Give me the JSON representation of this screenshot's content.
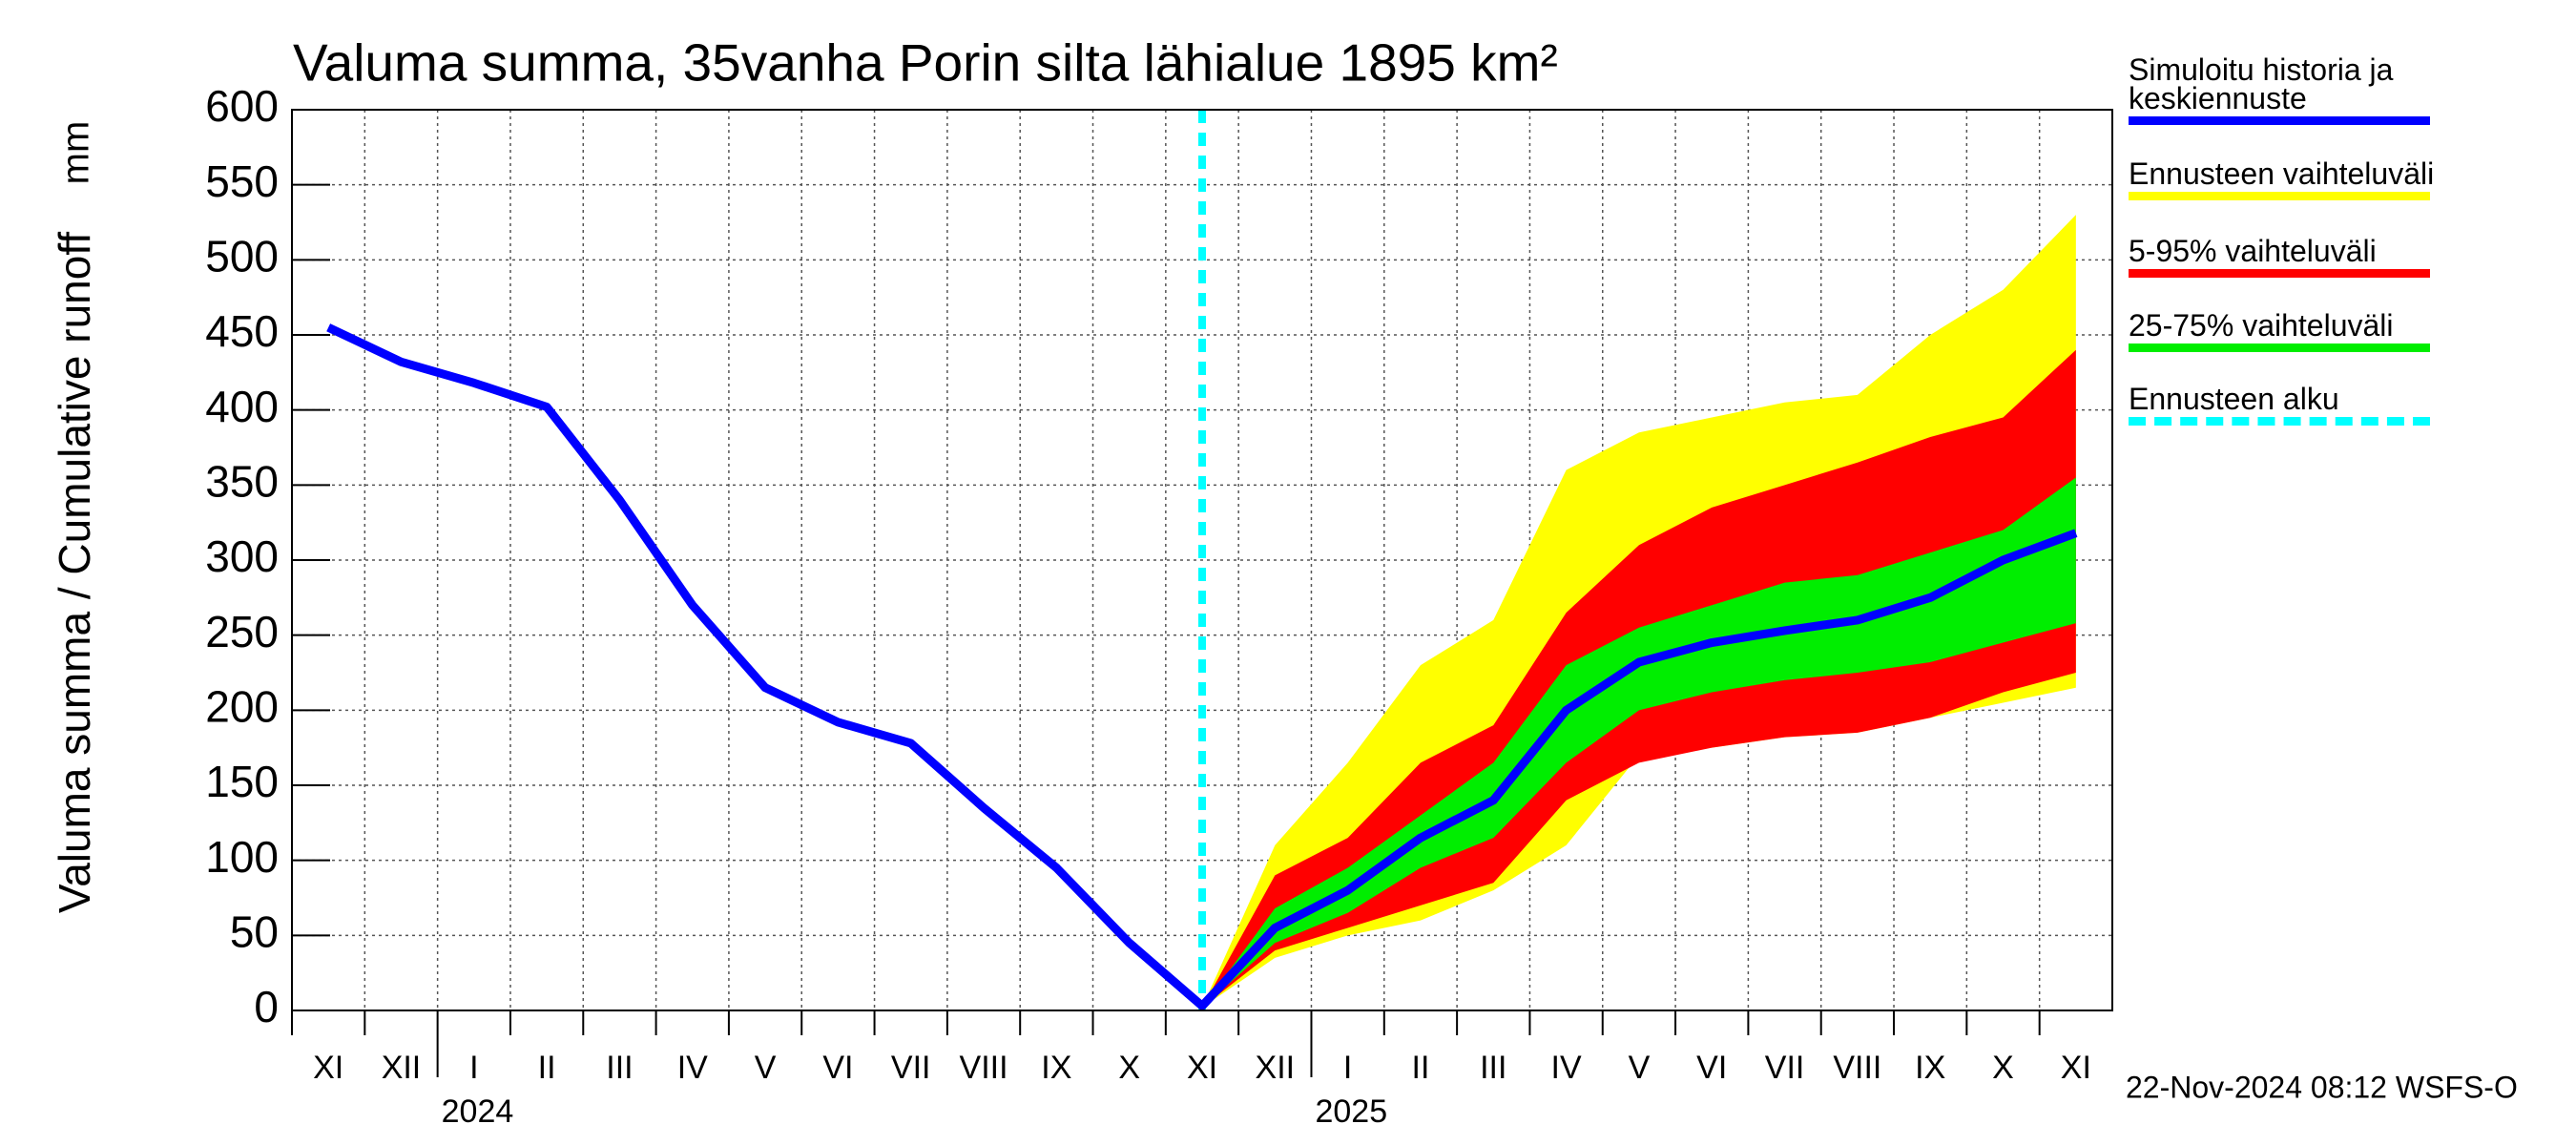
{
  "chart_data": {
    "type": "line",
    "title": "Valuma summa, 35vanha Porin silta lähialue 1895 km²",
    "ylabel": "Valuma summa / Cumulative runoff",
    "yunit": "mm",
    "footer": "22-Nov-2024 08:12 WSFS-O",
    "categories": [
      "XI",
      "XII",
      "I",
      "II",
      "III",
      "IV",
      "V",
      "VI",
      "VII",
      "VIII",
      "IX",
      "X",
      "XI",
      "XII",
      "I",
      "II",
      "III",
      "IV",
      "V",
      "VI",
      "VII",
      "VIII",
      "IX",
      "X",
      "XI"
    ],
    "years": [
      "2024",
      "2025"
    ],
    "ylim": [
      0,
      600
    ],
    "yticks": [
      0,
      50,
      100,
      150,
      200,
      250,
      300,
      350,
      400,
      450,
      500,
      550,
      600
    ],
    "grid": true,
    "series": [
      {
        "name": "Simuloitu historia ja keskiennuste",
        "color": "#0000ff",
        "values": [
          455,
          432,
          418,
          402,
          340,
          270,
          215,
          192,
          178,
          135,
          95,
          45,
          3,
          55,
          80,
          115,
          140,
          200,
          232,
          245,
          253,
          260,
          275,
          300,
          318
        ]
      },
      {
        "name": "Ennusteen vaihteluväli",
        "color": "#ffff00",
        "lower": [
          null,
          null,
          null,
          null,
          null,
          null,
          null,
          null,
          null,
          null,
          null,
          null,
          2,
          35,
          50,
          60,
          80,
          110,
          170,
          175,
          182,
          185,
          195,
          205,
          215
        ],
        "upper": [
          null,
          null,
          null,
          null,
          null,
          null,
          null,
          null,
          null,
          null,
          null,
          null,
          2,
          110,
          165,
          230,
          260,
          360,
          385,
          395,
          405,
          410,
          450,
          480,
          530
        ]
      },
      {
        "name": "5-95% vaihteluväli",
        "color": "#ff0000",
        "lower": [
          null,
          null,
          null,
          null,
          null,
          null,
          null,
          null,
          null,
          null,
          null,
          null,
          2,
          40,
          55,
          70,
          85,
          140,
          165,
          175,
          182,
          185,
          195,
          212,
          225
        ],
        "upper": [
          null,
          null,
          null,
          null,
          null,
          null,
          null,
          null,
          null,
          null,
          null,
          null,
          2,
          90,
          115,
          165,
          190,
          265,
          310,
          335,
          350,
          365,
          382,
          395,
          440
        ]
      },
      {
        "name": "25-75% vaihteluväli",
        "color": "#00ee00",
        "lower": [
          null,
          null,
          null,
          null,
          null,
          null,
          null,
          null,
          null,
          null,
          null,
          null,
          2,
          45,
          65,
          95,
          115,
          165,
          200,
          212,
          220,
          225,
          232,
          245,
          258
        ],
        "upper": [
          null,
          null,
          null,
          null,
          null,
          null,
          null,
          null,
          null,
          null,
          null,
          null,
          2,
          68,
          95,
          130,
          165,
          230,
          255,
          270,
          285,
          290,
          305,
          320,
          355
        ]
      },
      {
        "name": "Ennusteen alku",
        "color": "#00ffff",
        "style": "dashed"
      }
    ]
  }
}
